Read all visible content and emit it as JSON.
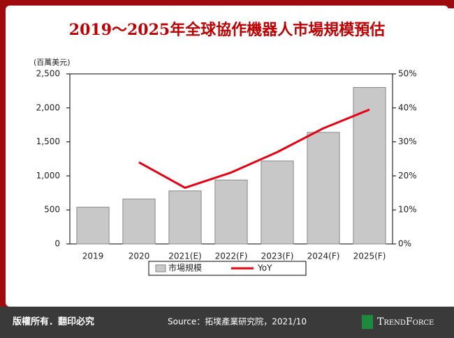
{
  "chart_data": {
    "type": "bar_line",
    "title": "2019～2025年全球協作機器人市場規模預估",
    "y_label": "(百萬美元)",
    "categories": [
      "2019",
      "2020",
      "2021(E)",
      "2022(F)",
      "2023(F)",
      "2024(F)",
      "2025(F)"
    ],
    "series": [
      {
        "name": "市場規模",
        "type": "bar",
        "color": "#c8c8c8",
        "values": [
          540,
          660,
          780,
          940,
          1220,
          1640,
          2300
        ]
      },
      {
        "name": "YoY",
        "type": "line",
        "axis": "y2",
        "color": "#e60012",
        "values": [
          null,
          24,
          16.5,
          21,
          27,
          34,
          39.5
        ]
      }
    ],
    "ylim": [
      0,
      2500
    ],
    "yticks": [
      0,
      500,
      {
        "value": 1000,
        "label": "1,000"
      },
      {
        "value": 1500,
        "label": "1,500"
      },
      {
        "value": 2000,
        "label": "2,000"
      },
      {
        "value": 2500,
        "label": "2,500"
      }
    ],
    "y2lim": [
      0,
      50
    ],
    "y2ticks": [
      {
        "value": 0,
        "label": "0%"
      },
      {
        "value": 10,
        "label": "10%"
      },
      {
        "value": 20,
        "label": "20%"
      },
      {
        "value": 30,
        "label": "30%"
      },
      {
        "value": 40,
        "label": "40%"
      },
      {
        "value": 50,
        "label": "50%"
      }
    ],
    "legend": "bottom"
  },
  "footer": {
    "copyright": "版權所有．翻印必究",
    "source": "Source：拓墣產業研究院，2021/10",
    "brand": "TrendForce"
  }
}
